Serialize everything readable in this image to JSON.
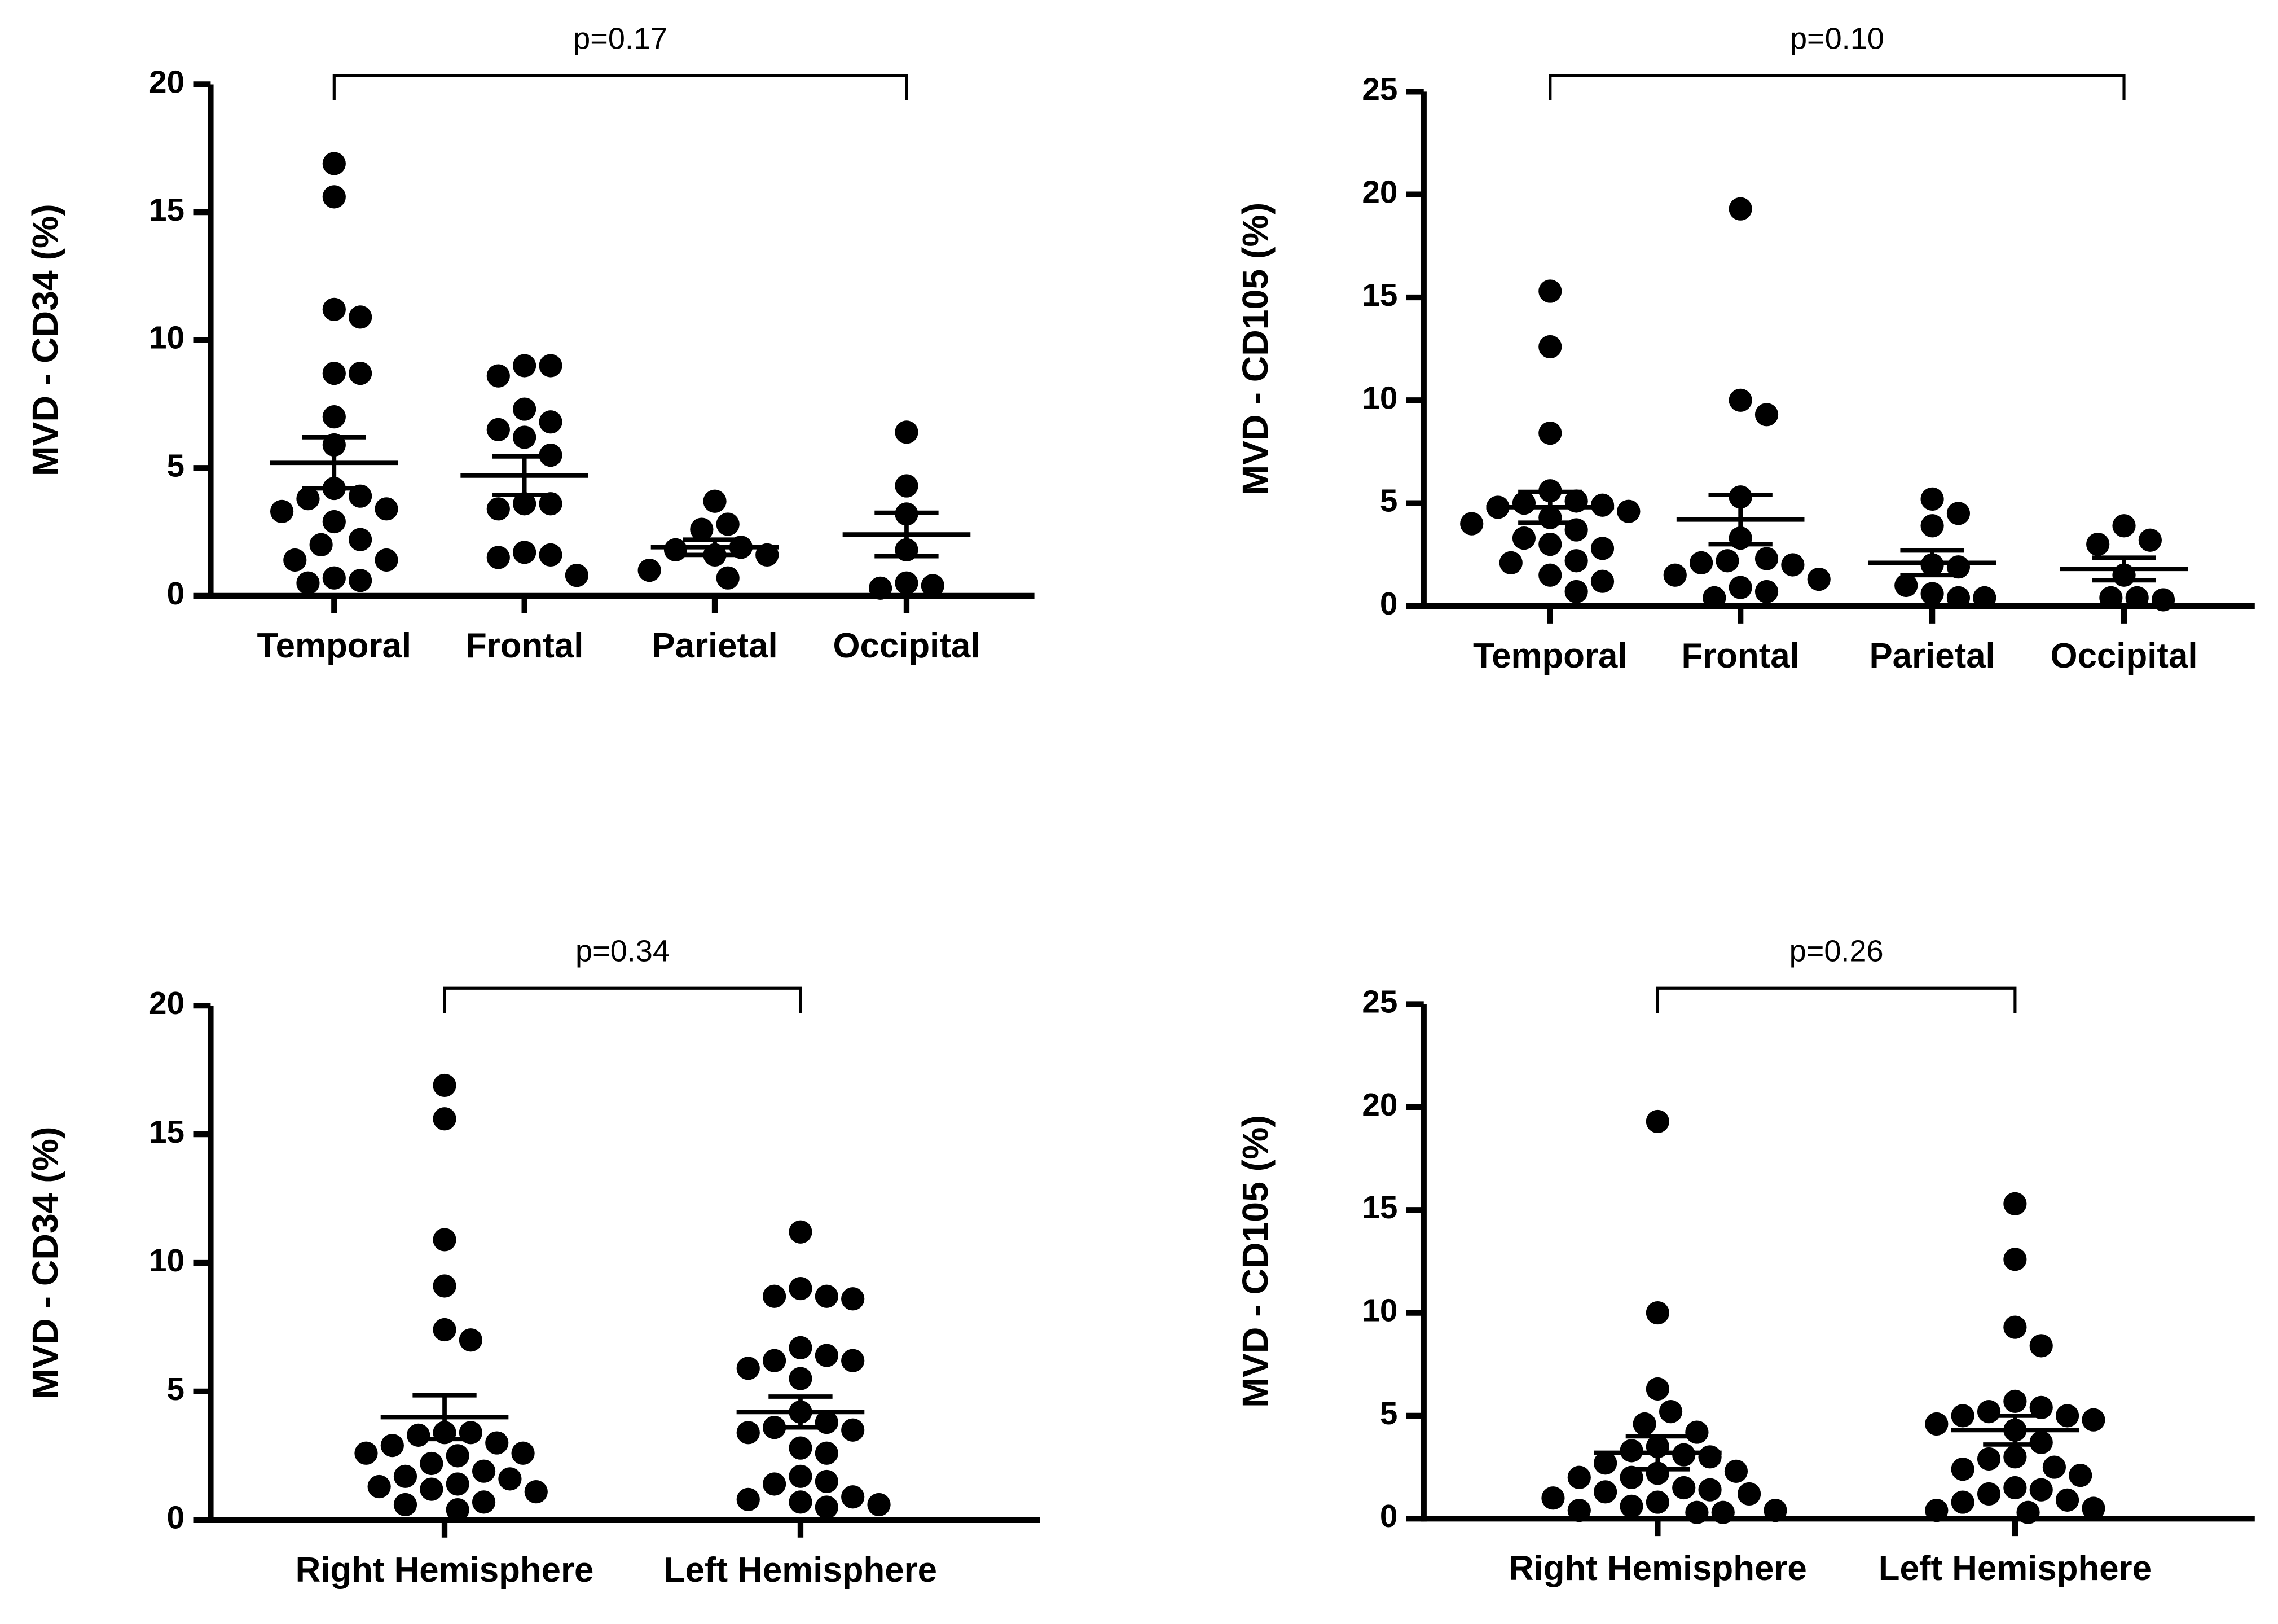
{
  "chart_data": [
    {
      "type": "scatter",
      "y_label": "MVD - CD34 (%)",
      "annotation": "p=0.17",
      "color": "#000000",
      "categories": [
        "Temporal",
        "Frontal",
        "Parietal",
        "Occipital"
      ],
      "points": [
        [
          16.9,
          15.6,
          11.2,
          10.9,
          8.7,
          8.7,
          7.0,
          5.9,
          4.2,
          3.9,
          3.8,
          3.4,
          3.3,
          2.9,
          2.2,
          2.0,
          1.4,
          1.4,
          0.7,
          0.6,
          0.5
        ],
        [
          9.0,
          9.0,
          8.6,
          7.3,
          6.8,
          6.5,
          6.2,
          5.5,
          3.6,
          3.6,
          3.4,
          1.7,
          1.6,
          1.5,
          0.8
        ],
        [
          3.7,
          2.8,
          2.6,
          1.9,
          1.8,
          1.6,
          1.6,
          1.0,
          0.7
        ],
        [
          6.4,
          4.3,
          3.2,
          1.8,
          0.5,
          0.4,
          0.3
        ]
      ],
      "means": [
        5.2,
        4.7,
        1.9,
        2.4
      ],
      "sems": [
        1.0,
        0.75,
        0.3,
        0.85
      ],
      "ylim": [
        0,
        20
      ],
      "yticks": [
        0,
        5,
        10,
        15,
        20
      ]
    },
    {
      "type": "scatter",
      "y_label": "MVD - CD105 (%)",
      "annotation": "p=0.10",
      "color": "#000000",
      "categories": [
        "Temporal",
        "Frontal",
        "Parietal",
        "Occipital"
      ],
      "points": [
        [
          15.3,
          12.6,
          8.4,
          5.6,
          5.1,
          5.0,
          4.9,
          4.8,
          4.6,
          4.3,
          4.0,
          3.7,
          3.3,
          3.0,
          2.8,
          2.2,
          2.1,
          1.5,
          1.2,
          0.7
        ],
        [
          19.3,
          10.0,
          9.3,
          5.3,
          3.3,
          2.3,
          2.2,
          2.1,
          2.0,
          1.5,
          1.3,
          0.9,
          0.7,
          0.4
        ],
        [
          5.2,
          4.5,
          3.9,
          2.0,
          1.9,
          1.0,
          0.6,
          0.4,
          0.4
        ],
        [
          3.9,
          3.2,
          3.0,
          1.5,
          0.4,
          0.4,
          0.3
        ]
      ],
      "means": [
        4.8,
        4.2,
        2.1,
        1.8
      ],
      "sems": [
        0.75,
        1.2,
        0.6,
        0.55
      ],
      "ylim": [
        0,
        25
      ],
      "yticks": [
        0,
        5,
        10,
        15,
        20,
        25
      ]
    },
    {
      "type": "scatter",
      "y_label": "MVD - CD34 (%)",
      "annotation": "p=0.34",
      "color": "#000000",
      "categories": [
        "Right Hemisphere",
        "Left Hemisphere"
      ],
      "points": [
        [
          16.9,
          15.6,
          10.9,
          9.1,
          7.4,
          7.0,
          3.4,
          3.4,
          3.3,
          3.0,
          2.9,
          2.6,
          2.6,
          2.5,
          2.2,
          1.9,
          1.7,
          1.6,
          1.4,
          1.3,
          1.2,
          1.1,
          0.7,
          0.6,
          0.4
        ],
        [
          11.2,
          9.0,
          8.7,
          8.7,
          8.6,
          6.7,
          6.4,
          6.2,
          6.2,
          5.9,
          5.5,
          4.2,
          3.8,
          3.6,
          3.5,
          3.4,
          2.8,
          2.6,
          1.7,
          1.5,
          1.4,
          0.9,
          0.8,
          0.7,
          0.6,
          0.5
        ]
      ],
      "means": [
        4.0,
        4.2
      ],
      "sems": [
        0.85,
        0.6
      ],
      "ylim": [
        0,
        20
      ],
      "yticks": [
        0,
        5,
        10,
        15,
        20
      ]
    },
    {
      "type": "scatter",
      "y_label": "MVD - CD105 (%)",
      "annotation": "p=0.26",
      "color": "#000000",
      "categories": [
        "Right Hemisphere",
        "Left Hemisphere"
      ],
      "points": [
        [
          19.3,
          10.0,
          6.3,
          5.2,
          4.6,
          4.2,
          3.5,
          3.3,
          3.1,
          3.0,
          2.7,
          2.3,
          2.2,
          2.0,
          2.0,
          1.5,
          1.4,
          1.3,
          1.2,
          1.0,
          0.8,
          0.6,
          0.4,
          0.4,
          0.3,
          0.3
        ],
        [
          15.3,
          12.6,
          9.3,
          8.4,
          5.7,
          5.4,
          5.2,
          5.0,
          5.0,
          4.8,
          4.6,
          4.3,
          3.7,
          3.0,
          2.9,
          2.5,
          2.4,
          2.1,
          1.5,
          1.4,
          1.2,
          0.9,
          0.8,
          0.5,
          0.4,
          0.3
        ]
      ],
      "means": [
        3.2,
        4.3
      ],
      "sems": [
        0.8,
        0.7
      ],
      "ylim": [
        0,
        25
      ],
      "yticks": [
        0,
        5,
        10,
        15,
        20,
        25
      ]
    }
  ]
}
